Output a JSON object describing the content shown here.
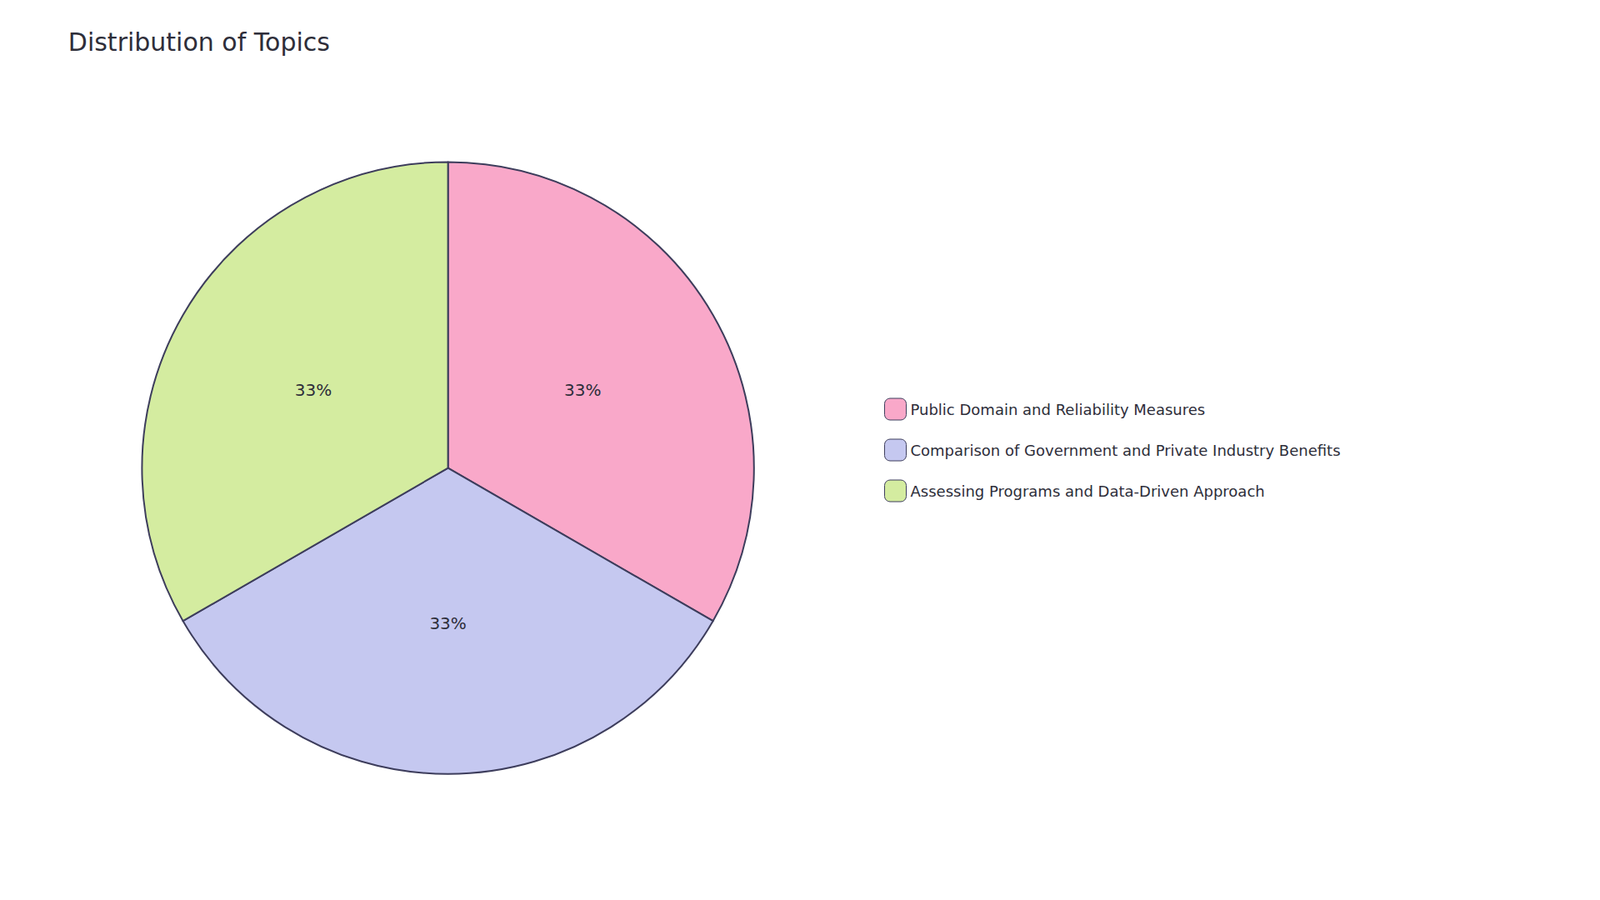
{
  "chart_data": {
    "type": "pie",
    "title": "Distribution of Topics",
    "categories": [
      "Public Domain and Reliability Measures",
      "Comparison of Government and Private Industry Benefits",
      "Assessing Programs and Data-Driven Approach"
    ],
    "values": [
      33,
      33,
      33
    ],
    "value_labels": [
      "33%",
      "33%",
      "33%"
    ],
    "colors": [
      "#F9A8C9",
      "#C5C8F0",
      "#D4ECA0"
    ],
    "legend": "right"
  }
}
